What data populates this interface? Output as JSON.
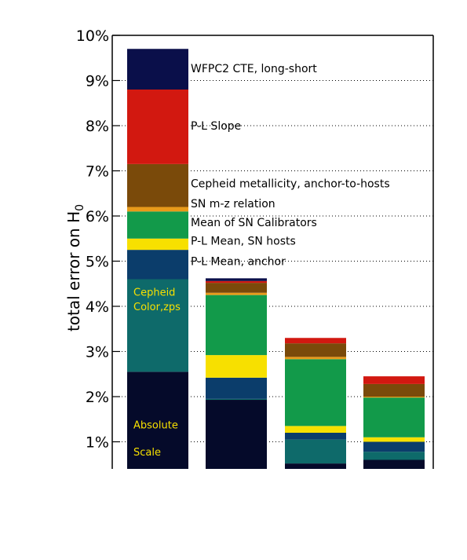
{
  "chart_data": {
    "type": "bar",
    "stacked": true,
    "ylabel_prefix": "total error on H",
    "ylabel_subscript": "0",
    "ylim": [
      0.4,
      10
    ],
    "yticks": [
      1,
      2,
      3,
      4,
      5,
      6,
      7,
      8,
      9,
      10
    ],
    "ytick_labels": [
      "1%",
      "2%",
      "3%",
      "4%",
      "5%",
      "6%",
      "7%",
      "8%",
      "9%",
      "10%"
    ],
    "grid": "horizontal dotted",
    "components": [
      {
        "name": "Absolute Scale",
        "color": "#050a2a"
      },
      {
        "name": "Cepheid Color,zps",
        "color": "#0e6a6a"
      },
      {
        "name": "P-L Mean, anchor",
        "color": "#0b3d6b"
      },
      {
        "name": "P-L Mean, SN hosts",
        "color": "#f7e000"
      },
      {
        "name": "Mean of SN Calibrators",
        "color": "#129a4a"
      },
      {
        "name": "SN m-z relation",
        "color": "#e89a1a"
      },
      {
        "name": "Cepheid metallicity, anchor-to-hosts",
        "color": "#7a4a0a"
      },
      {
        "name": "P-L Slope",
        "color": "#d21810"
      },
      {
        "name": "WFPC2 CTE, long-short",
        "color": "#0a0f4a"
      }
    ],
    "bars": [
      {
        "tops": [
          2.55,
          4.6,
          5.25,
          5.5,
          6.1,
          6.2,
          7.15,
          8.8,
          9.7
        ]
      },
      {
        "tops": [
          1.93,
          1.95,
          2.42,
          2.92,
          4.25,
          4.3,
          4.52,
          4.56,
          4.62
        ]
      },
      {
        "tops": [
          0.52,
          1.05,
          1.2,
          1.35,
          2.83,
          2.88,
          3.18,
          3.3,
          3.3
        ]
      },
      {
        "tops": [
          0.6,
          0.78,
          1.0,
          1.1,
          1.98,
          2.0,
          2.28,
          2.45,
          2.45
        ]
      }
    ],
    "annotations": {
      "inside_bar": [
        {
          "lines": [
            "Cepheid",
            "Color,zps"
          ],
          "color": "#f7e000",
          "y_values": [
            4.32,
            4.0
          ]
        },
        {
          "lines": [
            "Absolute",
            "Scale"
          ],
          "color": "#f7e000",
          "y_values": [
            1.38,
            0.78
          ]
        }
      ],
      "side_labels": [
        {
          "text": "WFPC2 CTE, long-short",
          "y": 9.27
        },
        {
          "text": "P-L Slope",
          "y": 8.0
        },
        {
          "text": "Cepheid metallicity, anchor-to-hosts",
          "y": 6.72
        },
        {
          "text": "SN m-z relation",
          "y": 6.28
        },
        {
          "text": "Mean of SN Calibrators",
          "y": 5.86
        },
        {
          "text": "P-L Mean, SN hosts",
          "y": 5.45
        },
        {
          "text": "P-L Mean, anchor",
          "y": 5.0
        }
      ]
    }
  }
}
